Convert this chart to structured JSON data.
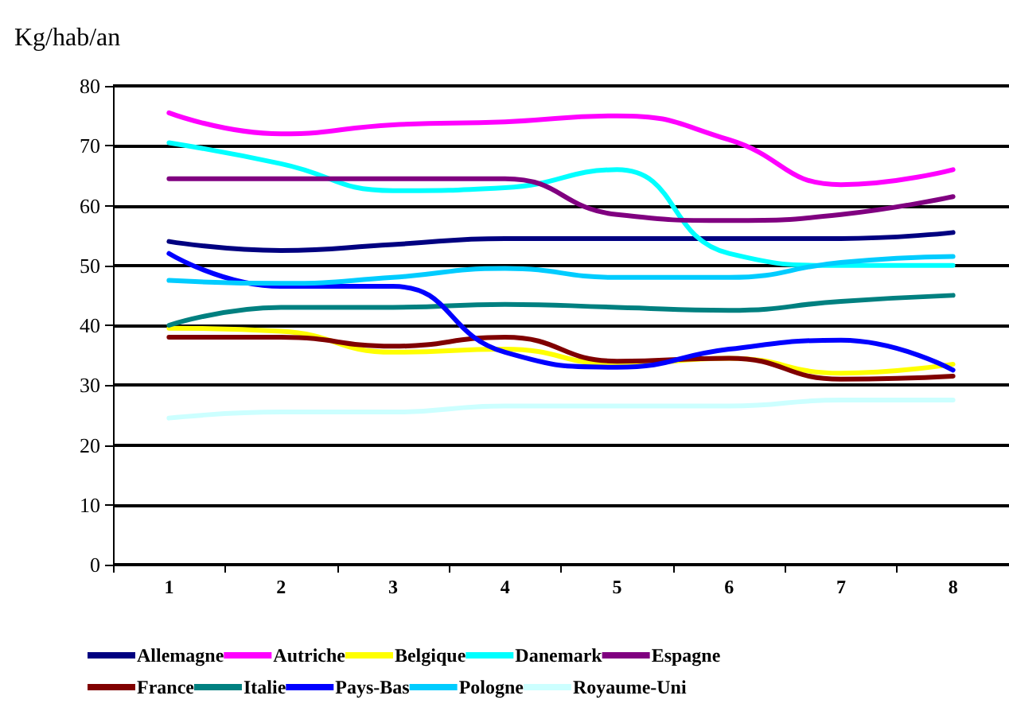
{
  "chart_data": {
    "type": "line",
    "ylabel": "Kg/hab/an",
    "categories": [
      "1",
      "2",
      "3",
      "4",
      "5",
      "6",
      "7",
      "8"
    ],
    "series": [
      {
        "name": "Allemagne",
        "color": "#000080",
        "values": [
          54,
          52.5,
          53.5,
          54.5,
          54.5,
          54.5,
          54.5,
          55.5
        ]
      },
      {
        "name": "Autriche",
        "color": "#ff00ff",
        "values": [
          75.5,
          72,
          73.5,
          74,
          75,
          71,
          63.5,
          66
        ]
      },
      {
        "name": "Belgique",
        "color": "#ffff00",
        "values": [
          39.5,
          39,
          35.5,
          36,
          33.5,
          34.5,
          32,
          33.5
        ]
      },
      {
        "name": "Danemark",
        "color": "#00ffff",
        "values": [
          70.5,
          67,
          62.5,
          63,
          66,
          52,
          50,
          50
        ]
      },
      {
        "name": "Espagne",
        "color": "#800080",
        "values": [
          64.5,
          64.5,
          64.5,
          64.5,
          58.5,
          57.5,
          58.5,
          61.5
        ]
      },
      {
        "name": "France",
        "color": "#800000",
        "values": [
          38,
          38,
          36.5,
          38,
          34,
          34.5,
          31,
          31.5
        ]
      },
      {
        "name": "Italie",
        "color": "#008080",
        "values": [
          40,
          43,
          43,
          43.5,
          43,
          42.5,
          44,
          45
        ]
      },
      {
        "name": "Pays-Bas",
        "color": "#0000ff",
        "values": [
          52,
          46.5,
          46.5,
          35.5,
          33,
          36,
          37.5,
          32.5
        ]
      },
      {
        "name": "Pologne",
        "color": "#00ccff",
        "values": [
          47.5,
          47,
          48,
          49.5,
          48,
          48,
          50.5,
          51.5
        ]
      },
      {
        "name": "Royaume-Uni",
        "color": "#ccffff",
        "values": [
          24.5,
          25.5,
          25.5,
          26.5,
          26.5,
          26.5,
          27.5,
          27.5
        ]
      }
    ],
    "ylim": [
      0,
      80
    ],
    "yticks": [
      0,
      10,
      20,
      30,
      40,
      50,
      60,
      70,
      80
    ],
    "grid": "y",
    "legend": "bottom",
    "line_style": "solid"
  }
}
